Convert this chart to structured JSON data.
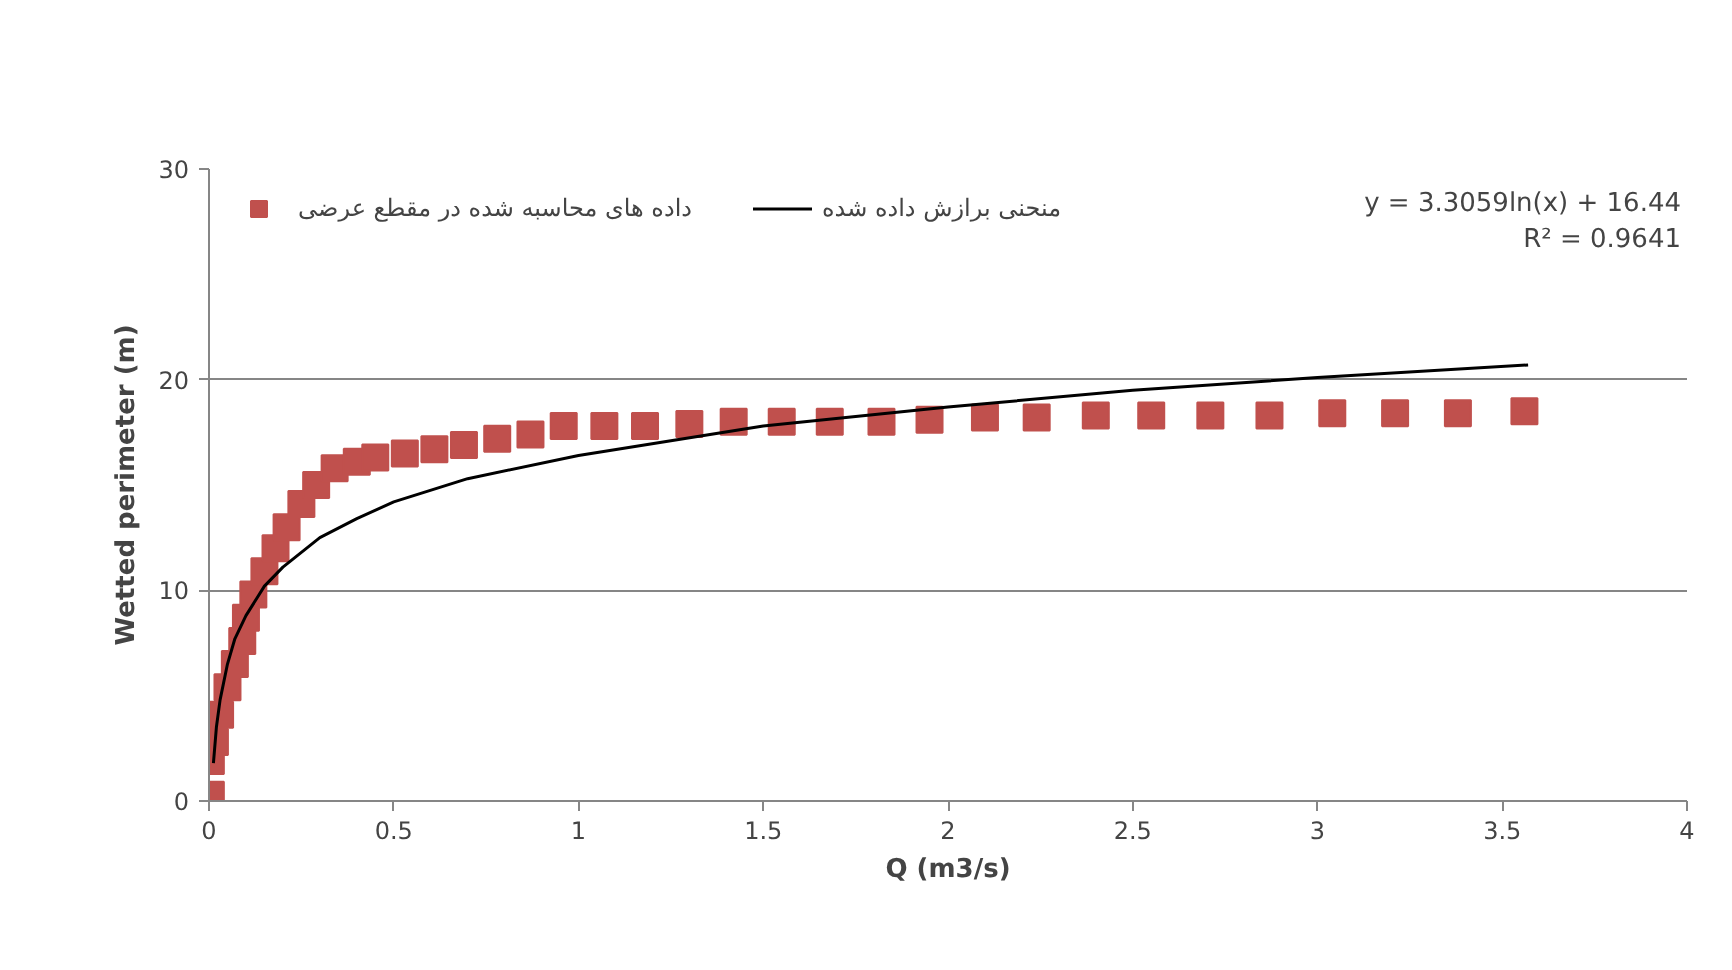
{
  "chart_data": {
    "type": "scatter",
    "xlabel": "Q (m3/s)",
    "ylabel": "Wetted perimeter (m)",
    "xlim": [
      0,
      4
    ],
    "ylim": [
      0,
      30
    ],
    "xticks": [
      0,
      0.5,
      1,
      1.5,
      2,
      2.5,
      3,
      3.5,
      4
    ],
    "yticks": [
      0,
      10,
      20,
      30
    ],
    "grid": "y",
    "legend": "top left",
    "annotations": [
      "y = 3.3059ln(x) + 16.44",
      "R² = 0.9641"
    ],
    "series": [
      {
        "name": "داده های محاسبه شده در مقطع عرضی",
        "marker": "square",
        "color": "#c0504d",
        "x": [
          0.005,
          0.005,
          0.016,
          0.03,
          0.05,
          0.07,
          0.09,
          0.1,
          0.12,
          0.15,
          0.18,
          0.21,
          0.25,
          0.29,
          0.34,
          0.4,
          0.45,
          0.53,
          0.61,
          0.69,
          0.78,
          0.87,
          0.96,
          1.07,
          1.18,
          1.3,
          1.42,
          1.55,
          1.68,
          1.82,
          1.95,
          2.1,
          2.24,
          2.4,
          2.55,
          2.71,
          2.87,
          3.04,
          3.21,
          3.38,
          3.56
        ],
        "values": [
          0.3,
          1.9,
          2.8,
          4.1,
          5.4,
          6.5,
          7.6,
          8.7,
          9.8,
          10.9,
          12.0,
          13.0,
          14.1,
          15.0,
          15.8,
          16.1,
          16.3,
          16.5,
          16.7,
          16.9,
          17.2,
          17.4,
          17.8,
          17.8,
          17.8,
          17.9,
          18.0,
          18.0,
          18.0,
          18.0,
          18.1,
          18.2,
          18.2,
          18.3,
          18.3,
          18.3,
          18.3,
          18.4,
          18.4,
          18.4,
          18.5
        ]
      },
      {
        "name": "منحنی برازش داده شده",
        "type": "line",
        "marker": "none",
        "color": "#000000",
        "x": [
          0.012,
          0.02,
          0.03,
          0.05,
          0.07,
          0.1,
          0.15,
          0.2,
          0.3,
          0.4,
          0.5,
          0.7,
          1,
          1.5,
          2,
          2.5,
          3,
          3.57
        ],
        "values": [
          1.8,
          3.5,
          4.8,
          6.5,
          7.7,
          8.8,
          10.2,
          11.1,
          12.5,
          13.4,
          14.2,
          15.3,
          16.4,
          17.8,
          18.7,
          19.5,
          20.1,
          20.7
        ]
      }
    ]
  }
}
